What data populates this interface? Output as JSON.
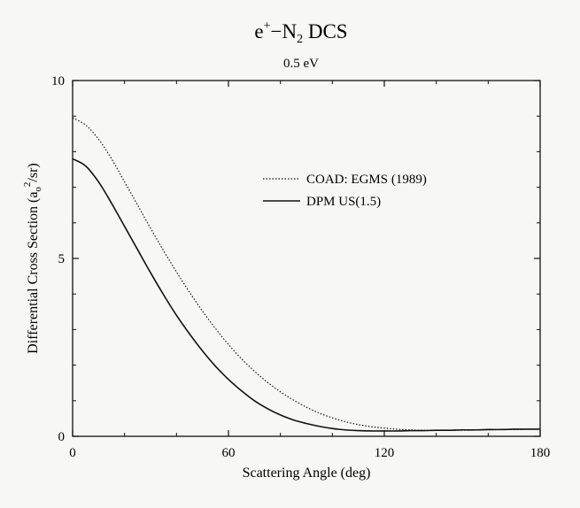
{
  "chart_data": {
    "type": "line",
    "title": {
      "prefix": "e",
      "charge": "+",
      "middle": "−N",
      "subscript": "2",
      "suffix": " DCS"
    },
    "subtitle": "0.5 eV",
    "xlabel": "Scattering Angle (deg)",
    "ylabel": {
      "main": "Differential Cross Section (a",
      "subscript": "o",
      "superscript": "2",
      "tail": "/sr)"
    },
    "xlim": [
      0,
      180
    ],
    "ylim": [
      0,
      10
    ],
    "x_ticks": [
      "0",
      "60",
      "120",
      "180"
    ],
    "y_ticks": [
      "0",
      "5",
      "10"
    ],
    "grid": false,
    "legend_position": "upper-right",
    "series": [
      {
        "name": "COAD: EGMS (1989)",
        "style": "dotted",
        "color": "#111111",
        "x": [
          0,
          5,
          10,
          15,
          20,
          25,
          30,
          35,
          40,
          45,
          50,
          55,
          60,
          65,
          70,
          75,
          80,
          85,
          90,
          95,
          100,
          105,
          110,
          115,
          120,
          125,
          130,
          135,
          140,
          145,
          150,
          155,
          160,
          165,
          170,
          175,
          180
        ],
        "y": [
          8.95,
          8.75,
          8.35,
          7.8,
          7.15,
          6.5,
          5.85,
          5.22,
          4.62,
          4.05,
          3.52,
          3.03,
          2.58,
          2.18,
          1.83,
          1.52,
          1.25,
          1.02,
          0.82,
          0.65,
          0.52,
          0.41,
          0.33,
          0.27,
          0.23,
          0.2,
          0.18,
          0.17,
          0.17,
          0.17,
          0.17,
          0.18,
          0.18,
          0.19,
          0.19,
          0.2,
          0.2
        ]
      },
      {
        "name": "DPM US(1.5)",
        "style": "solid",
        "color": "#111111",
        "x": [
          0,
          5,
          10,
          15,
          20,
          25,
          30,
          35,
          40,
          45,
          50,
          55,
          60,
          65,
          70,
          75,
          80,
          85,
          90,
          95,
          100,
          105,
          110,
          115,
          120,
          125,
          130,
          135,
          140,
          145,
          150,
          155,
          160,
          165,
          170,
          175,
          180
        ],
        "y": [
          7.8,
          7.6,
          7.15,
          6.55,
          5.9,
          5.25,
          4.6,
          3.98,
          3.4,
          2.88,
          2.4,
          1.97,
          1.6,
          1.28,
          1.0,
          0.78,
          0.6,
          0.46,
          0.36,
          0.28,
          0.22,
          0.18,
          0.16,
          0.15,
          0.15,
          0.15,
          0.16,
          0.16,
          0.17,
          0.17,
          0.18,
          0.18,
          0.19,
          0.19,
          0.2,
          0.2,
          0.2
        ]
      }
    ]
  }
}
